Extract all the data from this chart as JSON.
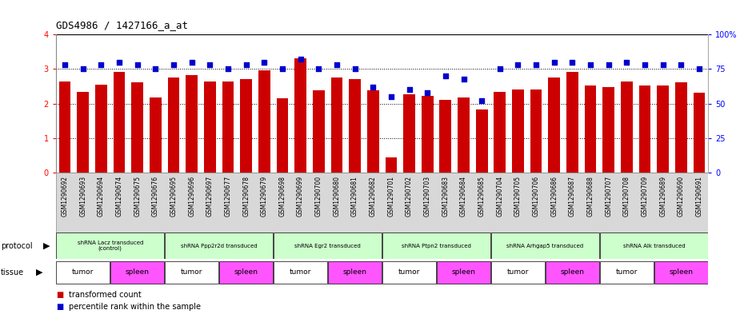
{
  "title": "GDS4986 / 1427166_a_at",
  "samples": [
    "GSM1290692",
    "GSM1290693",
    "GSM1290694",
    "GSM1290674",
    "GSM1290675",
    "GSM1290676",
    "GSM1290695",
    "GSM1290696",
    "GSM1290697",
    "GSM1290677",
    "GSM1290678",
    "GSM1290679",
    "GSM1290698",
    "GSM1290699",
    "GSM1290700",
    "GSM1290680",
    "GSM1290681",
    "GSM1290682",
    "GSM1290701",
    "GSM1290702",
    "GSM1290703",
    "GSM1290683",
    "GSM1290684",
    "GSM1290685",
    "GSM1290704",
    "GSM1290705",
    "GSM1290706",
    "GSM1290686",
    "GSM1290687",
    "GSM1290688",
    "GSM1290707",
    "GSM1290708",
    "GSM1290709",
    "GSM1290689",
    "GSM1290690",
    "GSM1290691"
  ],
  "bar_values": [
    2.65,
    2.35,
    2.55,
    2.92,
    2.62,
    2.18,
    2.75,
    2.82,
    2.65,
    2.65,
    2.72,
    2.97,
    2.15,
    3.32,
    2.38,
    2.75,
    2.72,
    2.38,
    0.45,
    2.28,
    2.22,
    2.12,
    2.18,
    1.82,
    2.35,
    2.42,
    2.42,
    2.75,
    2.92,
    2.52,
    2.48,
    2.65,
    2.52,
    2.52,
    2.62,
    2.32
  ],
  "dot_values": [
    78,
    75,
    78,
    80,
    78,
    75,
    78,
    80,
    78,
    75,
    78,
    80,
    75,
    82,
    75,
    78,
    75,
    62,
    55,
    60,
    58,
    70,
    68,
    52,
    75,
    78,
    78,
    80,
    80,
    78,
    78,
    80,
    78,
    78,
    78,
    75
  ],
  "ylim_left": [
    0,
    4
  ],
  "ylim_right": [
    0,
    100
  ],
  "yticks_left": [
    0,
    1,
    2,
    3,
    4
  ],
  "yticks_right": [
    0,
    25,
    50,
    75,
    100
  ],
  "ytick_labels_right": [
    "0",
    "25",
    "50",
    "75",
    "100%"
  ],
  "bar_color": "#cc0000",
  "dot_color": "#0000cc",
  "protocols": [
    {
      "label": "shRNA Lacz transduced\n(control)",
      "start": 0,
      "end": 5,
      "color": "#ccffcc"
    },
    {
      "label": "shRNA Ppp2r2d transduced",
      "start": 6,
      "end": 11,
      "color": "#ccffcc"
    },
    {
      "label": "shRNA Egr2 transduced",
      "start": 12,
      "end": 17,
      "color": "#ccffcc"
    },
    {
      "label": "shRNA Ptpn2 transduced",
      "start": 18,
      "end": 23,
      "color": "#ccffcc"
    },
    {
      "label": "shRNA Arhgap5 transduced",
      "start": 24,
      "end": 29,
      "color": "#ccffcc"
    },
    {
      "label": "shRNA Alk transduced",
      "start": 30,
      "end": 35,
      "color": "#ccffcc"
    }
  ],
  "tissues": [
    {
      "label": "tumor",
      "start": 0,
      "end": 2,
      "color": "#ffffff"
    },
    {
      "label": "spleen",
      "start": 3,
      "end": 5,
      "color": "#ff55ff"
    },
    {
      "label": "tumor",
      "start": 6,
      "end": 8,
      "color": "#ffffff"
    },
    {
      "label": "spleen",
      "start": 9,
      "end": 11,
      "color": "#ff55ff"
    },
    {
      "label": "tumor",
      "start": 12,
      "end": 14,
      "color": "#ffffff"
    },
    {
      "label": "spleen",
      "start": 15,
      "end": 17,
      "color": "#ff55ff"
    },
    {
      "label": "tumor",
      "start": 18,
      "end": 20,
      "color": "#ffffff"
    },
    {
      "label": "spleen",
      "start": 21,
      "end": 23,
      "color": "#ff55ff"
    },
    {
      "label": "tumor",
      "start": 24,
      "end": 26,
      "color": "#ffffff"
    },
    {
      "label": "spleen",
      "start": 27,
      "end": 29,
      "color": "#ff55ff"
    },
    {
      "label": "tumor",
      "start": 30,
      "end": 32,
      "color": "#ffffff"
    },
    {
      "label": "spleen",
      "start": 33,
      "end": 35,
      "color": "#ff55ff"
    }
  ],
  "background_color": "#ffffff",
  "plot_bg_color": "#ffffff",
  "xtick_bg": "#d8d8d8"
}
